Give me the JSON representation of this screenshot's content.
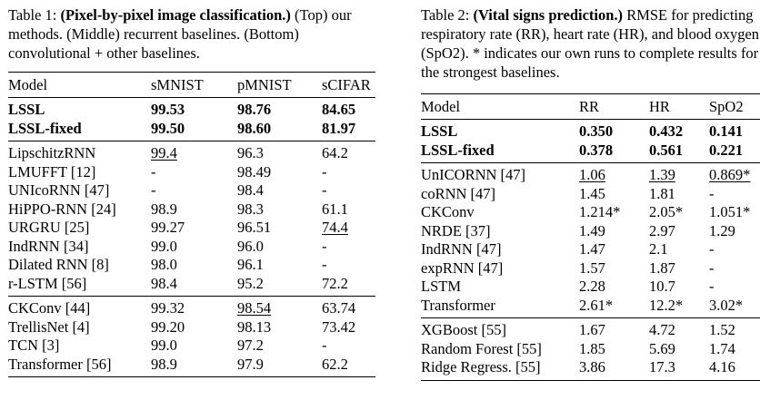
{
  "table1": {
    "caption_label": "Table 1:",
    "caption_title": "(Pixel-by-pixel image classification.)",
    "caption_rest": "(Top) our methods. (Middle) recurrent baselines. (Bottom) convolutional + other baselines.",
    "headers": [
      "Model",
      "sMNIST",
      "pMNIST",
      "sCIFAR"
    ],
    "groups": [
      [
        {
          "cells": [
            "LSSL",
            "99.53",
            "98.76",
            "84.65"
          ]
        },
        {
          "cells": [
            "LSSL-fixed",
            "99.50",
            "98.60",
            "81.97"
          ]
        }
      ],
      [
        {
          "cells": [
            "LipschitzRNN",
            "99.4",
            "96.3",
            "64.2"
          ],
          "underline": [
            1
          ]
        },
        {
          "cells": [
            "LMUFFT [12]",
            "-",
            "98.49",
            "-"
          ]
        },
        {
          "cells": [
            "UNIcoRNN [47]",
            "-",
            "98.4",
            "-"
          ]
        },
        {
          "cells": [
            "HiPPO-RNN [24]",
            "98.9",
            "98.3",
            "61.1"
          ]
        },
        {
          "cells": [
            "URGRU [25]",
            "99.27",
            "96.51",
            "74.4"
          ],
          "underline": [
            3
          ]
        },
        {
          "cells": [
            "IndRNN [34]",
            "99.0",
            "96.0",
            "-"
          ]
        },
        {
          "cells": [
            "Dilated RNN [8]",
            "98.0",
            "96.1",
            "-"
          ]
        },
        {
          "cells": [
            "r-LSTM  [56]",
            "98.4",
            "95.2",
            "72.2"
          ]
        }
      ],
      [
        {
          "cells": [
            "CKConv [44]",
            "99.32",
            "98.54",
            "63.74"
          ],
          "underline": [
            2
          ]
        },
        {
          "cells": [
            "TrellisNet [4]",
            "99.20",
            "98.13",
            "73.42"
          ]
        },
        {
          "cells": [
            "TCN [3]",
            "99.0",
            "97.2",
            "-"
          ]
        },
        {
          "cells": [
            "Transformer [56]",
            "98.9",
            "97.9",
            "62.2"
          ]
        }
      ]
    ]
  },
  "table2": {
    "caption_label": "Table 2:",
    "caption_title": "(Vital signs prediction.)",
    "caption_rest": "RMSE for predicting respiratory rate (RR), heart rate (HR), and blood oxygen (SpO2). * indicates our own runs to complete results for the strongest baselines.",
    "headers": [
      "Model",
      "RR",
      "HR",
      "SpO2"
    ],
    "groups": [
      [
        {
          "cells": [
            "LSSL",
            "0.350",
            "0.432",
            "0.141"
          ]
        },
        {
          "cells": [
            "LSSL-fixed",
            "0.378",
            "0.561",
            "0.221"
          ]
        }
      ],
      [
        {
          "cells": [
            "UnICORNN [47]",
            "1.06",
            "1.39",
            "0.869*"
          ],
          "underline": [
            1,
            2,
            3
          ]
        },
        {
          "cells": [
            "coRNN [47]",
            "1.45",
            "1.81",
            "-"
          ]
        },
        {
          "cells": [
            "CKConv",
            "1.214*",
            "2.05*",
            "1.051*"
          ]
        },
        {
          "cells": [
            "NRDE [37]",
            "1.49",
            "2.97",
            "1.29"
          ]
        },
        {
          "cells": [
            "IndRNN [47]",
            "1.47",
            "2.1",
            "-"
          ]
        },
        {
          "cells": [
            "expRNN [47]",
            "1.57",
            "1.87",
            "-"
          ]
        },
        {
          "cells": [
            "LSTM",
            "2.28",
            "10.7",
            "-"
          ]
        },
        {
          "cells": [
            "Transformer",
            "2.61*",
            "12.2*",
            "3.02*"
          ]
        }
      ],
      [
        {
          "cells": [
            "XGBoost [55]",
            "1.67",
            "4.72",
            "1.52"
          ]
        },
        {
          "cells": [
            "Random Forest [55]",
            "1.85",
            "5.69",
            "1.74"
          ]
        },
        {
          "cells": [
            "Ridge Regress. [55]",
            "3.86",
            "17.3",
            "4.16"
          ]
        }
      ]
    ]
  }
}
